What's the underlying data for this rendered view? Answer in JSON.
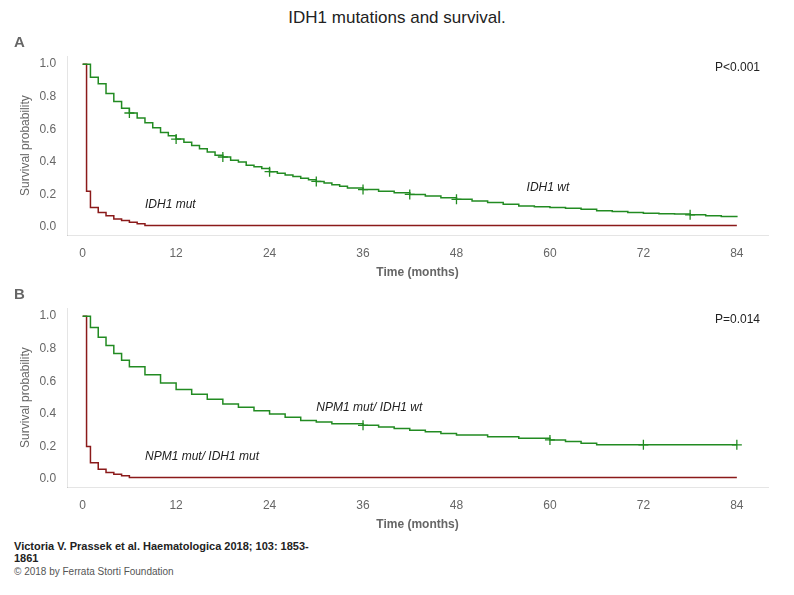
{
  "title": "IDH1 mutations and survival.",
  "annotations": [
    "Victoria V. Prassek et al. Haematologica 2018; 103: 1853-\n1861",
    "© 2018 by Ferrata Storti Foundation"
  ],
  "chart_data": [
    {
      "type": "line",
      "title": "A",
      "x_label": "Time (months)",
      "y_label": "Survival probability",
      "xlim": [
        -2,
        88
      ],
      "ylim": [
        -0.05,
        1.05
      ],
      "xticks": [
        0,
        12,
        24,
        36,
        48,
        60,
        72,
        84
      ],
      "yticks": [
        {
          "value": 0.0,
          "label": "0.0"
        },
        0.2,
        0.4,
        0.6,
        0.8,
        {
          "value": 1.0,
          "label": "1.0"
        }
      ],
      "grid": false,
      "series": [
        {
          "type": "step",
          "color": "#228B22",
          "x": [
            0,
            1,
            2,
            3,
            4,
            5,
            6,
            7,
            8,
            9,
            10,
            11,
            12,
            13,
            14,
            15,
            16,
            17,
            18,
            19,
            20,
            21,
            22,
            23,
            24,
            25,
            26,
            27,
            28,
            29,
            30,
            31,
            32,
            33,
            34,
            36,
            38,
            40,
            42,
            44,
            46,
            48,
            50,
            52,
            54,
            56,
            58,
            60,
            62,
            64,
            66,
            68,
            70,
            72,
            74,
            76,
            78,
            80,
            82,
            84
          ],
          "values": [
            1.0,
            0.92,
            0.88,
            0.82,
            0.77,
            0.73,
            0.7,
            0.67,
            0.64,
            0.61,
            0.58,
            0.56,
            0.54,
            0.52,
            0.5,
            0.48,
            0.46,
            0.44,
            0.43,
            0.41,
            0.4,
            0.38,
            0.37,
            0.36,
            0.34,
            0.33,
            0.32,
            0.31,
            0.3,
            0.29,
            0.28,
            0.27,
            0.26,
            0.25,
            0.24,
            0.23,
            0.22,
            0.21,
            0.2,
            0.19,
            0.18,
            0.17,
            0.16,
            0.15,
            0.14,
            0.13,
            0.125,
            0.12,
            0.115,
            0.11,
            0.1,
            0.095,
            0.09,
            0.085,
            0.082,
            0.08,
            0.075,
            0.07,
            0.065,
            0.06
          ]
        },
        {
          "type": "step",
          "color": "#8B1A1A",
          "x": [
            0,
            0.5,
            1,
            2,
            3,
            4,
            5,
            6,
            7,
            8,
            84
          ],
          "values": [
            1.0,
            0.22,
            0.12,
            0.09,
            0.07,
            0.05,
            0.04,
            0.03,
            0.02,
            0.01,
            0.01
          ]
        },
        {
          "type": "scatter",
          "marker": "+",
          "color": "#228B22",
          "x": [
            6,
            12,
            18,
            24,
            30,
            36,
            42,
            48,
            78
          ],
          "values": [
            0.7,
            0.54,
            0.43,
            0.34,
            0.28,
            0.23,
            0.2,
            0.17,
            0.075
          ]
        }
      ],
      "annotations": [
        {
          "text": "P<0.001"
        },
        {
          "text": "IDH1 wt",
          "x": 57,
          "y": 0.22
        },
        {
          "text": "IDH1 mut",
          "x": 8,
          "y": 0.12
        }
      ]
    },
    {
      "type": "line",
      "title": "B",
      "x_label": "Time (months)",
      "y_label": "Survival probability",
      "xlim": [
        -2,
        88
      ],
      "ylim": [
        -0.05,
        1.05
      ],
      "xticks": [
        0,
        12,
        24,
        36,
        48,
        60,
        72,
        84
      ],
      "yticks": [
        {
          "value": 0.0,
          "label": "0.0"
        },
        0.2,
        0.4,
        0.6,
        0.8,
        {
          "value": 1.0,
          "label": "1.0"
        }
      ],
      "grid": false,
      "series": [
        {
          "type": "step",
          "color": "#228B22",
          "x": [
            0,
            1,
            2,
            3,
            4,
            5,
            6,
            8,
            10,
            12,
            14,
            16,
            18,
            20,
            22,
            24,
            26,
            28,
            30,
            32,
            34,
            36,
            38,
            40,
            42,
            44,
            46,
            48,
            50,
            52,
            54,
            56,
            58,
            60,
            62,
            64,
            66,
            68,
            70,
            72,
            74,
            76,
            78,
            80,
            82,
            84
          ],
          "values": [
            1.0,
            0.93,
            0.87,
            0.82,
            0.77,
            0.73,
            0.69,
            0.64,
            0.59,
            0.55,
            0.52,
            0.49,
            0.46,
            0.44,
            0.42,
            0.4,
            0.38,
            0.36,
            0.35,
            0.34,
            0.34,
            0.33,
            0.32,
            0.31,
            0.3,
            0.29,
            0.28,
            0.27,
            0.27,
            0.26,
            0.26,
            0.25,
            0.25,
            0.24,
            0.23,
            0.22,
            0.21,
            0.21,
            0.21,
            0.21,
            0.21,
            0.21,
            0.21,
            0.21,
            0.21,
            0.21
          ]
        },
        {
          "type": "step",
          "color": "#8B1A1A",
          "x": [
            0,
            0.5,
            1,
            2,
            3,
            4,
            5,
            6,
            7,
            84
          ],
          "values": [
            1.0,
            0.2,
            0.1,
            0.06,
            0.04,
            0.03,
            0.02,
            0.01,
            0.01,
            0.01
          ]
        },
        {
          "type": "scatter",
          "marker": "+",
          "color": "#228B22",
          "x": [
            36,
            60,
            72,
            84
          ],
          "values": [
            0.33,
            0.24,
            0.21,
            0.21
          ]
        }
      ],
      "annotations": [
        {
          "text": "P=0.014"
        },
        {
          "text": "NPM1 mut/ IDH1 wt",
          "x": 30,
          "y": 0.42
        },
        {
          "text": "NPM1 mut/ IDH1 mut",
          "x": 8,
          "y": 0.12
        }
      ]
    }
  ]
}
